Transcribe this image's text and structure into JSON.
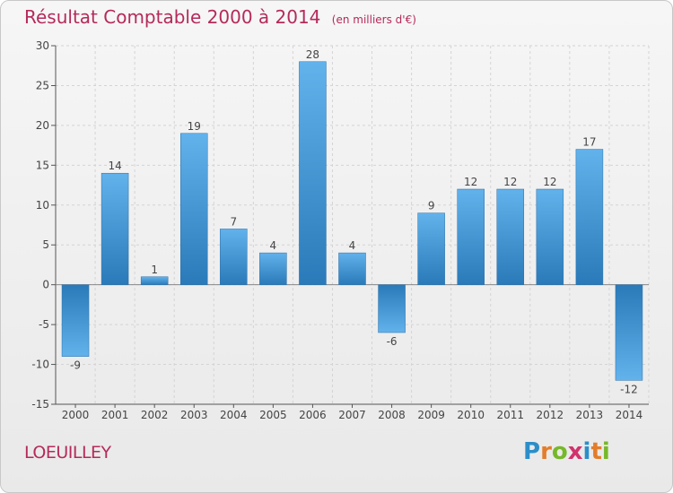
{
  "title": "Résultat Comptable 2000 à 2014",
  "subtitle": "(en milliers d'€)",
  "commune": "LOEUILLEY",
  "logo": {
    "text": "Proxiti",
    "letters": [
      {
        "ch": "P",
        "color": "#2b8ec9"
      },
      {
        "ch": "r",
        "color": "#e37d2b"
      },
      {
        "ch": "o",
        "color": "#76b82a"
      },
      {
        "ch": "x",
        "color": "#d2326d"
      },
      {
        "ch": "i",
        "color": "#2b8ec9"
      },
      {
        "ch": "t",
        "color": "#e37d2b"
      },
      {
        "ch": "i",
        "color": "#76b82a"
      }
    ]
  },
  "colors": {
    "title": "#b52a5b",
    "bar_light": "#62b2ec",
    "bar_dark": "#2a7ab9"
  },
  "chart_data": {
    "type": "bar",
    "categories": [
      "2000",
      "2001",
      "2002",
      "2003",
      "2004",
      "2005",
      "2006",
      "2007",
      "2008",
      "2009",
      "2010",
      "2011",
      "2012",
      "2013",
      "2014"
    ],
    "values": [
      -9,
      14,
      1,
      19,
      7,
      4,
      28,
      4,
      -6,
      9,
      12,
      12,
      12,
      17,
      -12
    ],
    "data_labels": [
      "-9",
      "14",
      "1",
      "19",
      "7",
      "4",
      "28",
      "4",
      "-6",
      "9",
      "12",
      "12",
      "12",
      "17",
      "-12"
    ],
    "ylim": [
      -15,
      30
    ],
    "yticks": [
      -15,
      -10,
      -5,
      0,
      5,
      10,
      15,
      20,
      25,
      30
    ],
    "grid": true
  }
}
